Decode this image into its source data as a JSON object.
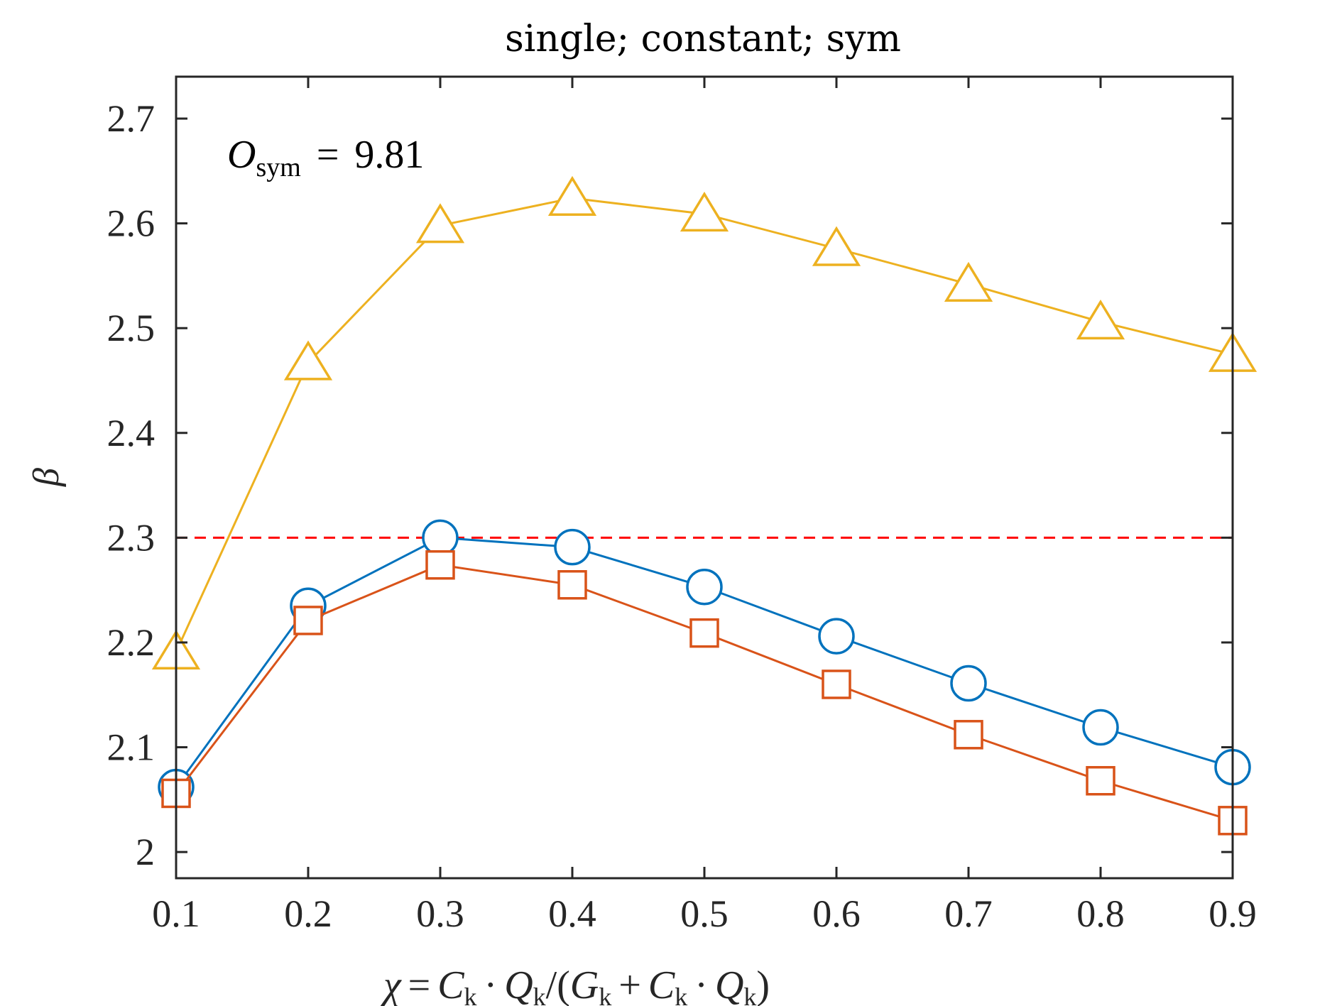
{
  "chart_data": {
    "type": "line",
    "title": "single; constant; sym",
    "xlabel": {
      "chi": "χ",
      "C": "C",
      "Q": "Q",
      "G": "G",
      "sub": "k",
      "equals": "=",
      "dot": "·",
      "slash": "/(",
      "plus": "+",
      "close": ")"
    },
    "ylabel": "β",
    "xlim": [
      0.1,
      0.9
    ],
    "ylim": [
      1.975,
      2.74
    ],
    "x_ticks": [
      "0.1",
      "0.2",
      "0.3",
      "0.4",
      "0.5",
      "0.6",
      "0.7",
      "0.8",
      "0.9"
    ],
    "y_ticks": [
      "2",
      "2.1",
      "2.2",
      "2.3",
      "2.4",
      "2.5",
      "2.6",
      "2.7"
    ],
    "x": [
      0.1,
      0.2,
      0.3,
      0.4,
      0.5,
      0.6,
      0.7,
      0.8,
      0.9
    ],
    "series": [
      {
        "color": "#0072BD",
        "marker": "circle",
        "values": [
          2.062,
          2.235,
          2.3,
          2.291,
          2.253,
          2.206,
          2.161,
          2.119,
          2.081
        ]
      },
      {
        "color": "#D95319",
        "marker": "square",
        "values": [
          2.056,
          2.221,
          2.274,
          2.255,
          2.209,
          2.16,
          2.112,
          2.068,
          2.03
        ]
      },
      {
        "color": "#EDB120",
        "marker": "triangle",
        "values": [
          2.191,
          2.467,
          2.598,
          2.624,
          2.609,
          2.576,
          2.542,
          2.506,
          2.475
        ]
      }
    ],
    "reference_line": {
      "y": 2.3,
      "color": "#FF0000",
      "style": "dashed"
    },
    "annotation": {
      "var": "O",
      "sub": "sym",
      "equals": "=",
      "value": "9.81"
    },
    "grid": false,
    "legend": "none"
  }
}
